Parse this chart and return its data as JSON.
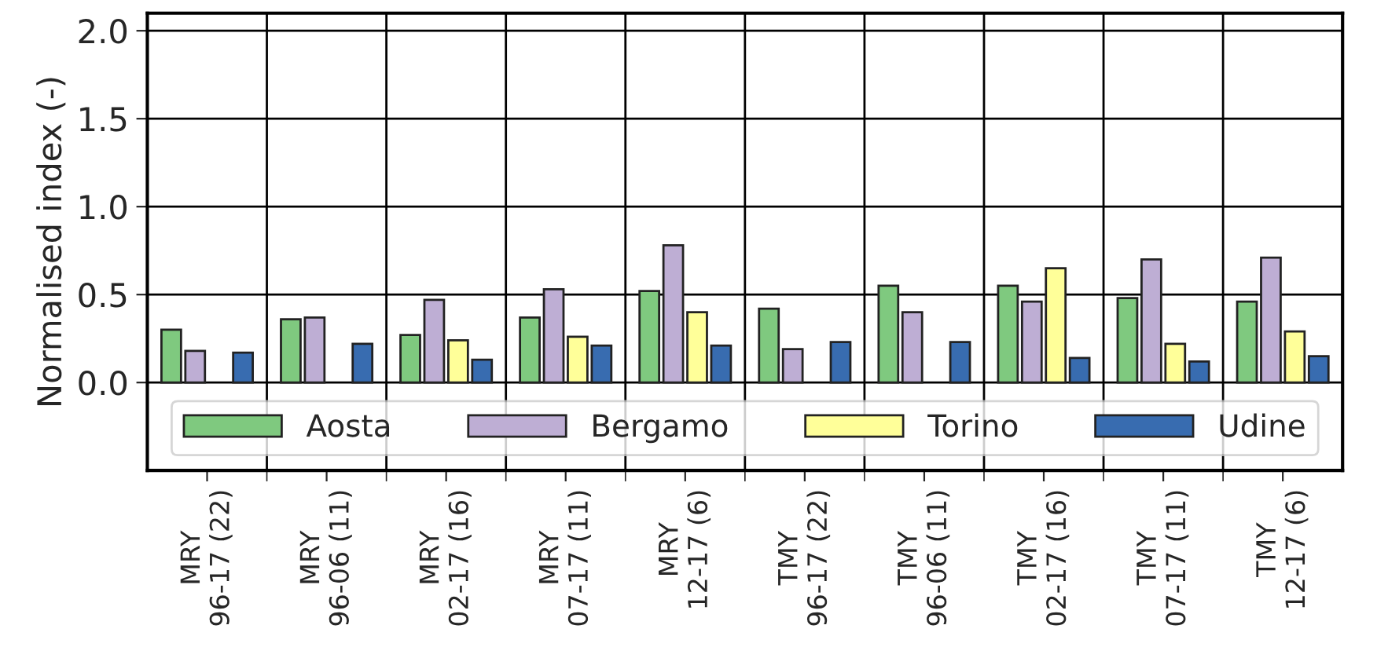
{
  "chart_data": {
    "type": "bar",
    "ylabel": "Normalised index (-)",
    "categories": [
      "MRY\n96-17 (22)",
      "MRY\n96-06 (11)",
      "MRY\n02-17 (16)",
      "MRY\n07-17 (11)",
      "MRY\n12-17 (6)",
      "TMY\n96-17 (22)",
      "TMY\n96-06 (11)",
      "TMY\n02-17 (16)",
      "TMY\n07-17 (11)",
      "TMY\n12-17 (6)"
    ],
    "series": [
      {
        "name": "Aosta",
        "color": "#7fc97f",
        "values": [
          0.3,
          0.36,
          0.27,
          0.37,
          0.52,
          0.42,
          0.55,
          0.55,
          0.48,
          0.46
        ]
      },
      {
        "name": "Bergamo",
        "color": "#beaed4",
        "values": [
          0.18,
          0.37,
          0.47,
          0.53,
          0.78,
          0.19,
          0.4,
          0.46,
          0.7,
          0.71
        ]
      },
      {
        "name": "Torino",
        "color": "#ffff99",
        "values": [
          null,
          null,
          0.24,
          0.26,
          0.4,
          null,
          null,
          0.65,
          0.22,
          0.29
        ]
      },
      {
        "name": "Udine",
        "color": "#386cb0",
        "values": [
          0.17,
          0.22,
          0.13,
          0.21,
          0.21,
          0.23,
          0.23,
          0.14,
          0.12,
          0.15
        ]
      }
    ],
    "ylim": [
      -0.5,
      2.1
    ],
    "yticks": [
      {
        "value": 0,
        "label": "0.0"
      },
      0.5,
      {
        "value": 1,
        "label": "1.0"
      },
      1.5,
      {
        "value": 2,
        "label": "2.0"
      }
    ],
    "grid": true,
    "legend": "bottom"
  }
}
